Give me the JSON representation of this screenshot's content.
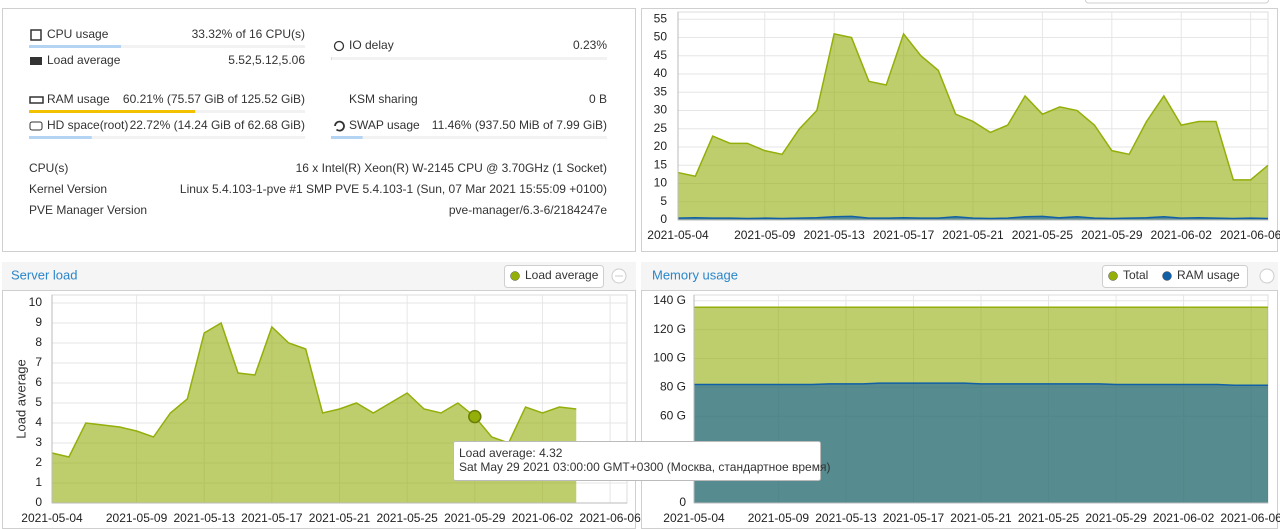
{
  "status": {
    "cpu": {
      "label": "CPU usage",
      "value": "33.32% of 16 CPU(s)",
      "percent": 33.32
    },
    "load": {
      "label": "Load average",
      "value": "5.52,5.12,5.06"
    },
    "io": {
      "label": "IO delay",
      "value": "0.23%",
      "percent": 0.23
    },
    "ram": {
      "label": "RAM usage",
      "value": "60.21% (75.57 GiB of 125.52 GiB)",
      "percent": 60.21
    },
    "ksm": {
      "label": "KSM sharing",
      "value": "0 B"
    },
    "hd": {
      "label": "HD space(root)",
      "value": "22.72% (14.24 GiB of 62.68 GiB)",
      "percent": 22.72
    },
    "swap": {
      "label": "SWAP usage",
      "value": "11.46% (937.50 MiB of 7.99 GiB)",
      "percent": 11.46
    },
    "info": [
      {
        "label": "CPU(s)",
        "value": "16 x Intel(R) Xeon(R) W-2145 CPU @ 3.70GHz (1 Socket)"
      },
      {
        "label": "Kernel Version",
        "value": "Linux 5.4.103-1-pve #1 SMP PVE 5.4.103-1 (Sun, 07 Mar 2021 15:55:09 +0100)"
      },
      {
        "label": "PVE Manager Version",
        "value": "pve-manager/6.3-6/2184247e"
      }
    ]
  },
  "chart_data": [
    {
      "type": "area",
      "x": [
        "2021-05-04",
        "2021-05-05",
        "2021-05-06",
        "2021-05-07",
        "2021-05-08",
        "2021-05-09",
        "2021-05-10",
        "2021-05-11",
        "2021-05-12",
        "2021-05-13",
        "2021-05-14",
        "2021-05-15",
        "2021-05-16",
        "2021-05-17",
        "2021-05-18",
        "2021-05-19",
        "2021-05-20",
        "2021-05-21",
        "2021-05-22",
        "2021-05-23",
        "2021-05-24",
        "2021-05-25",
        "2021-05-26",
        "2021-05-27",
        "2021-05-28",
        "2021-05-29",
        "2021-05-30",
        "2021-05-31",
        "2021-06-01",
        "2021-06-02",
        "2021-06-03",
        "2021-06-04",
        "2021-06-05",
        "2021-06-06",
        "2021-06-07"
      ],
      "series": [
        {
          "color": "#94ae0a",
          "values": [
            13,
            12,
            23,
            21,
            21,
            19,
            18,
            25,
            30,
            51,
            50,
            38,
            37,
            51,
            45,
            41,
            29,
            27,
            24,
            26,
            34,
            29,
            31,
            30,
            26,
            19,
            18,
            27,
            34,
            26,
            27,
            27,
            11,
            11,
            15
          ]
        },
        {
          "color": "#115fa6",
          "values": [
            0.5,
            0.6,
            0.5,
            0.5,
            0.4,
            0.5,
            0.4,
            0.5,
            0.6,
            0.9,
            1.0,
            0.5,
            0.5,
            0.6,
            0.5,
            0.5,
            0.9,
            0.5,
            0.4,
            0.5,
            0.9,
            1.0,
            0.6,
            0.9,
            0.5,
            0.4,
            0.5,
            0.6,
            0.9,
            0.5,
            0.6,
            0.5,
            0.4,
            0.5,
            0.4
          ]
        }
      ],
      "ylim": [
        0,
        57
      ],
      "yticks": [
        0,
        5,
        10,
        15,
        20,
        25,
        30,
        35,
        40,
        45,
        50,
        55
      ],
      "xticks": [
        "2021-05-04",
        "2021-05-09",
        "2021-05-13",
        "2021-05-17",
        "2021-05-21",
        "2021-05-25",
        "2021-05-29",
        "2021-06-02",
        "2021-06-06"
      ],
      "grid": true
    },
    {
      "type": "area",
      "title": "Server load",
      "ylabel": "Load average",
      "x": [
        "2021-05-04",
        "2021-05-05",
        "2021-05-06",
        "2021-05-07",
        "2021-05-08",
        "2021-05-09",
        "2021-05-10",
        "2021-05-11",
        "2021-05-12",
        "2021-05-13",
        "2021-05-14",
        "2021-05-15",
        "2021-05-16",
        "2021-05-17",
        "2021-05-18",
        "2021-05-19",
        "2021-05-20",
        "2021-05-21",
        "2021-05-22",
        "2021-05-23",
        "2021-05-24",
        "2021-05-25",
        "2021-05-26",
        "2021-05-27",
        "2021-05-28",
        "2021-05-29",
        "2021-05-30",
        "2021-05-31",
        "2021-06-01",
        "2021-06-02",
        "2021-06-03",
        "2021-06-04",
        "2021-06-05",
        "2021-06-06",
        "2021-06-07"
      ],
      "series": [
        {
          "name": "Load average",
          "color": "#94ae0a",
          "values": [
            2.5,
            2.3,
            4.0,
            3.9,
            3.8,
            3.6,
            3.3,
            4.5,
            5.2,
            8.5,
            9.0,
            6.5,
            6.4,
            8.8,
            8.0,
            7.7,
            4.5,
            4.7,
            5.0,
            4.5,
            5.0,
            5.5,
            4.7,
            4.5,
            5.0,
            4.32,
            3.3,
            3.0,
            4.8,
            4.5,
            4.8,
            4.7,
            null,
            null,
            null
          ]
        }
      ],
      "ylim": [
        0,
        10.4
      ],
      "yticks": [
        0,
        1,
        2,
        3,
        4,
        5,
        6,
        7,
        8,
        9,
        10
      ],
      "xticks": [
        "2021-05-04",
        "2021-05-09",
        "2021-05-13",
        "2021-05-17",
        "2021-05-21",
        "2021-05-25",
        "2021-05-29",
        "2021-06-02",
        "2021-06-06"
      ],
      "grid": true,
      "tooltip": {
        "index": 25,
        "lines": [
          "Load average: 4.32",
          "Sat May 29 2021 03:00:00 GMT+0300 (Москва, стандартное время)"
        ]
      }
    },
    {
      "type": "area",
      "title": "Memory usage",
      "x": [
        "2021-05-04",
        "2021-05-05",
        "2021-05-06",
        "2021-05-07",
        "2021-05-08",
        "2021-05-09",
        "2021-05-10",
        "2021-05-11",
        "2021-05-12",
        "2021-05-13",
        "2021-05-14",
        "2021-05-15",
        "2021-05-16",
        "2021-05-17",
        "2021-05-18",
        "2021-05-19",
        "2021-05-20",
        "2021-05-21",
        "2021-05-22",
        "2021-05-23",
        "2021-05-24",
        "2021-05-25",
        "2021-05-26",
        "2021-05-27",
        "2021-05-28",
        "2021-05-29",
        "2021-05-30",
        "2021-05-31",
        "2021-06-01",
        "2021-06-02",
        "2021-06-03",
        "2021-06-04",
        "2021-06-05",
        "2021-06-06",
        "2021-06-07"
      ],
      "series": [
        {
          "name": "Total",
          "color": "#94ae0a",
          "values": [
            135.5,
            135.5,
            135.5,
            135.5,
            135.5,
            135.5,
            135.5,
            135.5,
            135.5,
            135.5,
            135.5,
            135.5,
            135.5,
            135.5,
            135.5,
            135.5,
            135.5,
            135.5,
            135.5,
            135.5,
            135.5,
            135.5,
            135.5,
            135.5,
            135.5,
            135.5,
            135.5,
            135.5,
            135.5,
            135.5,
            135.5,
            135.5,
            135.5,
            135.5,
            135.5
          ]
        },
        {
          "name": "RAM usage",
          "color": "#115fa6",
          "values": [
            82,
            82,
            82,
            82,
            82,
            82,
            82,
            82,
            82.5,
            82.5,
            82.5,
            83,
            83,
            83,
            83,
            83,
            83,
            82.5,
            82.5,
            82.5,
            82.5,
            82.5,
            82.5,
            82.5,
            82.5,
            82,
            82,
            82,
            82,
            82,
            82,
            82,
            81.5,
            81.5,
            81.5
          ]
        }
      ],
      "ylim": [
        0,
        144
      ],
      "yticks": [
        0,
        {
          "value": 60,
          "label": "60 G"
        },
        {
          "value": 80,
          "label": "80 G"
        },
        {
          "value": 100,
          "label": "100 G"
        },
        {
          "value": 120,
          "label": "120 G"
        },
        {
          "value": 140,
          "label": "140 G"
        }
      ],
      "xticks": [
        "2021-05-04",
        "2021-05-09",
        "2021-05-13",
        "2021-05-17",
        "2021-05-21",
        "2021-05-25",
        "2021-05-29",
        "2021-06-02",
        "2021-06-06"
      ],
      "grid": true
    }
  ]
}
